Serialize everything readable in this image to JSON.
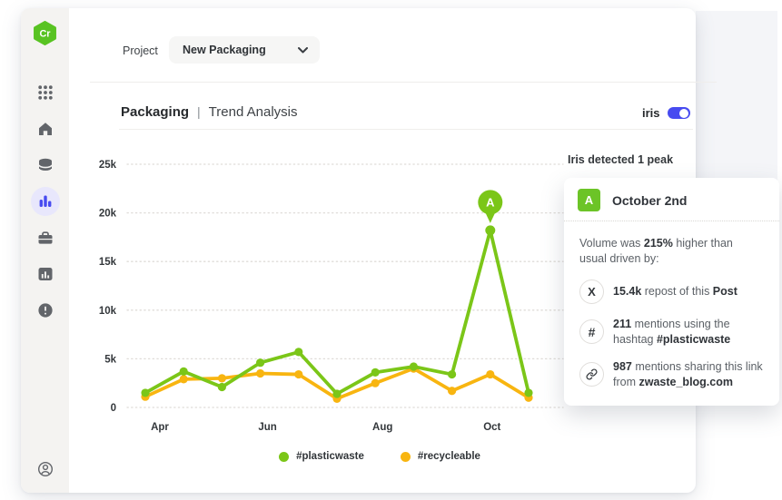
{
  "brand": {
    "logo_text": "Cr"
  },
  "sidebar": {
    "items": [
      {
        "id": "apps",
        "icon": "apps-grid-icon"
      },
      {
        "id": "home",
        "icon": "home-icon"
      },
      {
        "id": "data",
        "icon": "database-icon"
      },
      {
        "id": "analytics",
        "icon": "bar-chart-icon",
        "active": true
      },
      {
        "id": "projects",
        "icon": "briefcase-icon"
      },
      {
        "id": "reports",
        "icon": "chart-box-icon"
      },
      {
        "id": "alerts",
        "icon": "alert-icon"
      }
    ],
    "footer": {
      "id": "account",
      "icon": "account-icon"
    }
  },
  "topbar": {
    "project_label": "Project",
    "project_value": "New Packaging"
  },
  "header": {
    "title": "Packaging",
    "separator": "|",
    "subtitle": "Trend Analysis",
    "toggle_label": "iris",
    "toggle_on": true
  },
  "insight": {
    "heading": "Iris detected 1 peak",
    "card": {
      "badge": "A",
      "title": "October 2nd",
      "intro": [
        {
          "t": "Volume was "
        },
        {
          "t": "215%",
          "b": true
        },
        {
          "t": " higher than usual driven by:"
        }
      ],
      "items": [
        {
          "icon": "x-social-icon",
          "text": [
            {
              "t": "15.4k",
              "b": true
            },
            {
              "t": " repost of this "
            },
            {
              "t": "Post",
              "b": true
            }
          ]
        },
        {
          "icon": "hashtag-icon",
          "text": [
            {
              "t": "211",
              "b": true
            },
            {
              "t": " mentions using the hashtag "
            },
            {
              "t": "#plasticwaste",
              "b": true
            }
          ]
        },
        {
          "icon": "link-icon",
          "text": [
            {
              "t": "987",
              "b": true
            },
            {
              "t": " mentions sharing this link from "
            },
            {
              "t": "zwaste_blog.com",
              "b": true
            }
          ]
        }
      ]
    }
  },
  "chart_data": {
    "type": "line",
    "title": "Packaging | Trend Analysis",
    "x_tick_labels": [
      "Apr",
      "Jun",
      "Aug",
      "Oct"
    ],
    "x_tick_point_indices": [
      0,
      3,
      6,
      9
    ],
    "y_ticks": [
      "0",
      "5k",
      "10k",
      "15k",
      "20k",
      "25k"
    ],
    "ylim": [
      0,
      25000
    ],
    "grid": "dotted-horizontal",
    "legend_position": "bottom",
    "series": [
      {
        "name": "#plasticwaste",
        "color": "#7BC618",
        "values": [
          1500,
          3700,
          2100,
          4600,
          5700,
          1400,
          3600,
          4200,
          3400,
          18200,
          1500
        ]
      },
      {
        "name": "#recycleable",
        "color": "#F8B510",
        "values": [
          1100,
          2900,
          3000,
          3500,
          3400,
          900,
          2500,
          4000,
          1700,
          3400,
          1000
        ]
      }
    ],
    "annotation": {
      "label": "A",
      "series": 0,
      "point_index": 9,
      "note": "October 2nd peak"
    }
  },
  "colors": {
    "brand_green": "#58C322",
    "chart_green": "#7BC618",
    "chart_yellow": "#F8B510",
    "accent_indigo": "#474BF0",
    "badge_green": "#6CC427",
    "sidebar_bg": "#F4F3F1",
    "text_dark": "#30343A",
    "text_gray": "#5B6066"
  }
}
